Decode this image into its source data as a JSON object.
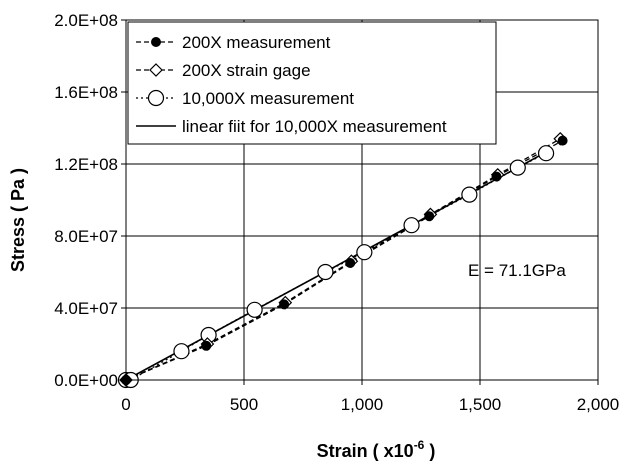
{
  "chart_data": {
    "type": "scatter",
    "title": "",
    "xlabel": "Strain ( x10",
    "xlabel_sup": "-6",
    "xlabel_end": " )",
    "ylabel": "Stress ( Pa )",
    "xlim": [
      0,
      2000
    ],
    "ylim": [
      0,
      200000000
    ],
    "x_ticks": [
      0,
      500,
      1000,
      1500,
      2000
    ],
    "x_tick_labels": [
      "0",
      "500",
      "1,000",
      "1,500",
      "2,000"
    ],
    "y_ticks": [
      0,
      40000000,
      80000000,
      120000000,
      160000000,
      200000000
    ],
    "y_tick_labels": [
      "0.0E+00",
      "4.0E+07",
      "8.0E+07",
      "1.2E+08",
      "1.6E+08",
      "2.0E+08"
    ],
    "grid": true,
    "legend_position": "top-left",
    "annotation": "E = 71.1GPa",
    "series": [
      {
        "name": "200X measurement",
        "marker": "filled-circle",
        "line": "dashed",
        "x": [
          0,
          340,
          670,
          950,
          1285,
          1570,
          1850
        ],
        "y": [
          0,
          19000000,
          42000000,
          65000000,
          91000000,
          113000000,
          133000000
        ]
      },
      {
        "name": "200X strain gage",
        "marker": "open-diamond",
        "line": "dashed",
        "x": [
          0,
          345,
          675,
          955,
          1290,
          1575,
          1840
        ],
        "y": [
          0,
          20000000,
          43000000,
          66000000,
          92000000,
          114000000,
          134000000
        ]
      },
      {
        "name": "10,000X measurement",
        "marker": "open-circle",
        "line": "dotted",
        "x": [
          0,
          20,
          235,
          350,
          545,
          845,
          1010,
          1210,
          1455,
          1660,
          1780
        ],
        "y": [
          0,
          0,
          16000000,
          25000000,
          39000000,
          60000000,
          71000000,
          86000000,
          103000000,
          118000000,
          126000000
        ]
      },
      {
        "name": "linear fiit for 10,000X measurement",
        "marker": "none",
        "line": "solid",
        "x": [
          0,
          1800
        ],
        "y": [
          0,
          128000000
        ]
      }
    ]
  }
}
